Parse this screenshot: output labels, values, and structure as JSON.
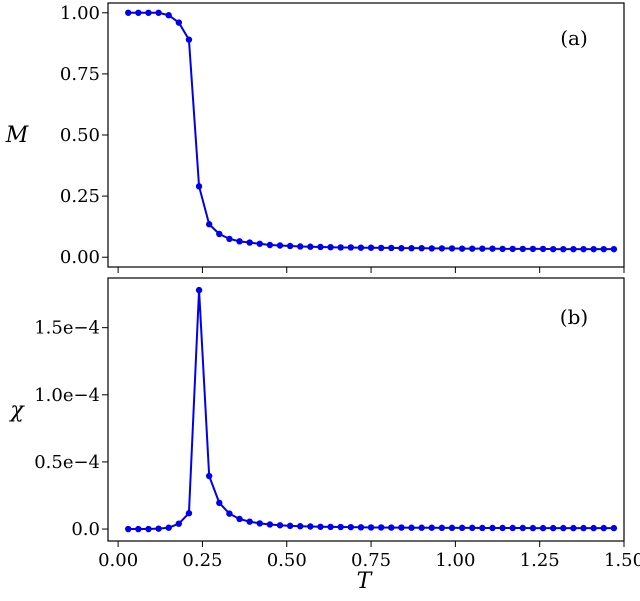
{
  "chart_data": [
    {
      "type": "line",
      "panel_label": "(a)",
      "ylabel": "M",
      "xlabel": "",
      "xlim": [
        -0.03,
        1.5
      ],
      "ylim": [
        -0.04,
        1.04
      ],
      "x_ticks": [
        0.0,
        0.25,
        0.5,
        0.75,
        1.0,
        1.25,
        1.5
      ],
      "x_tick_labels_shown": false,
      "y_ticks": [
        0.0,
        0.25,
        0.5,
        0.75,
        1.0
      ],
      "y_tick_labels": [
        "0.00",
        "0.25",
        "0.50",
        "0.75",
        "1.00"
      ],
      "color": "#0000ee",
      "grid": false,
      "series": [
        {
          "x": [
            0.03,
            0.06,
            0.09,
            0.12,
            0.15,
            0.18,
            0.21,
            0.24,
            0.27,
            0.3,
            0.33,
            0.36,
            0.39,
            0.42,
            0.45,
            0.48,
            0.51,
            0.54,
            0.57,
            0.6,
            0.63,
            0.66,
            0.69,
            0.72,
            0.75,
            0.78,
            0.81,
            0.84,
            0.87,
            0.9,
            0.93,
            0.96,
            0.99,
            1.02,
            1.05,
            1.08,
            1.11,
            1.14,
            1.17,
            1.2,
            1.23,
            1.26,
            1.29,
            1.32,
            1.35,
            1.38,
            1.41,
            1.44,
            1.47
          ],
          "y": [
            1.0,
            1.0,
            1.0,
            1.0,
            0.99,
            0.96,
            0.89,
            0.29,
            0.135,
            0.095,
            0.075,
            0.065,
            0.06,
            0.055,
            0.05,
            0.048,
            0.046,
            0.044,
            0.043,
            0.042,
            0.041,
            0.04,
            0.04,
            0.039,
            0.039,
            0.038,
            0.038,
            0.037,
            0.037,
            0.037,
            0.036,
            0.036,
            0.036,
            0.035,
            0.035,
            0.035,
            0.035,
            0.034,
            0.034,
            0.034,
            0.034,
            0.034,
            0.033,
            0.033,
            0.033,
            0.033,
            0.033,
            0.033,
            0.033
          ]
        }
      ]
    },
    {
      "type": "line",
      "panel_label": "(b)",
      "ylabel": "χ",
      "xlabel": "T",
      "xlim": [
        -0.03,
        1.5
      ],
      "ylim": [
        -8.9e-06,
        0.000187
      ],
      "x_ticks": [
        0.0,
        0.25,
        0.5,
        0.75,
        1.0,
        1.25,
        1.5
      ],
      "x_tick_labels": [
        "0.00",
        "0.25",
        "0.50",
        "0.75",
        "1.00",
        "1.25",
        "1.50"
      ],
      "x_tick_labels_shown": true,
      "y_ticks": [
        0.0,
        5e-05,
        0.0001,
        0.00015
      ],
      "y_tick_labels": [
        "0.0",
        "0.5e−4",
        "1.0e−4",
        "1.5e−4"
      ],
      "color": "#0000ee",
      "grid": false,
      "series": [
        {
          "x": [
            0.03,
            0.06,
            0.09,
            0.12,
            0.15,
            0.18,
            0.21,
            0.24,
            0.27,
            0.3,
            0.33,
            0.36,
            0.39,
            0.42,
            0.45,
            0.48,
            0.51,
            0.54,
            0.57,
            0.6,
            0.63,
            0.66,
            0.69,
            0.72,
            0.75,
            0.78,
            0.81,
            0.84,
            0.87,
            0.9,
            0.93,
            0.96,
            0.99,
            1.02,
            1.05,
            1.08,
            1.11,
            1.14,
            1.17,
            1.2,
            1.23,
            1.26,
            1.29,
            1.32,
            1.35,
            1.38,
            1.41,
            1.44,
            1.47
          ],
          "y": [
            0.0,
            0.0,
            0.0,
            3e-07,
            1e-06,
            4e-06,
            1.18e-05,
            0.000178,
            3.95e-05,
            1.95e-05,
            1.15e-05,
            7.5e-06,
            5.5e-06,
            4.2e-06,
            3.4e-06,
            2.8e-06,
            2.4e-06,
            2.1e-06,
            1.9e-06,
            1.7e-06,
            1.6e-06,
            1.5e-06,
            1.4e-06,
            1.3e-06,
            1.2e-06,
            1.2e-06,
            1.1e-06,
            1.1e-06,
            1e-06,
            1e-06,
            1e-06,
            9e-07,
            9e-07,
            9e-07,
            9e-07,
            8e-07,
            8e-07,
            8e-07,
            8e-07,
            8e-07,
            7e-07,
            7e-07,
            7e-07,
            7e-07,
            7e-07,
            7e-07,
            7e-07,
            7e-07,
            7e-07
          ]
        }
      ]
    }
  ]
}
